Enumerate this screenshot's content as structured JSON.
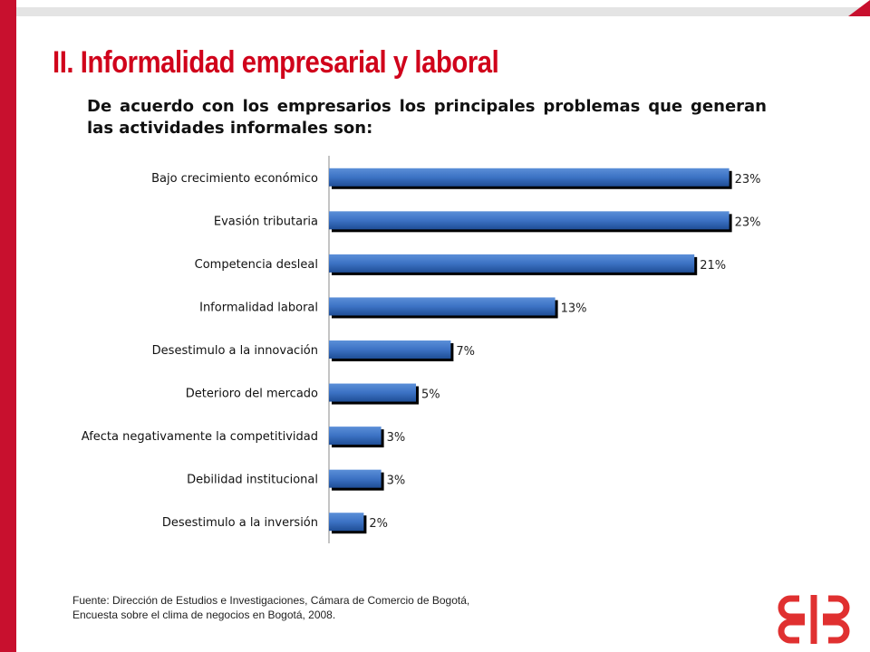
{
  "title": "II. Informalidad empresarial y laboral",
  "subtitle": "De acuerdo con los empresarios los principales problemas que generan las actividades informales son:",
  "source": {
    "line1": "Fuente: Dirección de Estudios e Investigaciones, Cámara de Comercio de Bogotá,",
    "line2": "Encuesta sobre el clima de negocios en Bogotá, 2008."
  },
  "colors": {
    "accent": "#c8102e",
    "bar": "#3c72c4",
    "bar_dark": "#1f4e96",
    "shadow": "#000000"
  },
  "chart_data": {
    "type": "bar",
    "orientation": "horizontal",
    "categories": [
      "Bajo crecimiento económico",
      "Evasión tributaria",
      "Competencia desleal",
      "Informalidad laboral",
      "Desestimulo a la innovación",
      "Deterioro del mercado",
      "Afecta negativamente la competitividad",
      "Debilidad institucional",
      "Desestimulo a la inversión"
    ],
    "values": [
      23,
      23,
      21,
      13,
      7,
      5,
      3,
      3,
      2
    ],
    "data_labels": [
      "23%",
      "23%",
      "21%",
      "13%",
      "7%",
      "5%",
      "3%",
      "3%",
      "2%"
    ],
    "xlim": [
      0,
      25
    ],
    "unit": "%",
    "grid": false
  }
}
